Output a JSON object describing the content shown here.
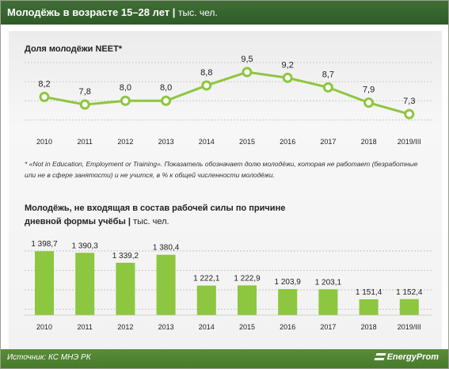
{
  "header": {
    "title": "Молодёжь в возрасте 15–28 лет",
    "unit": "тыс. чел."
  },
  "colors": {
    "header_bg": "#3f6f36",
    "accent": "#8dc63f",
    "marker_fill": "#ffffff",
    "text": "#222222"
  },
  "chart_data": [
    {
      "type": "line",
      "title": "Доля молодёжи NEET*",
      "categories": [
        "2010",
        "2011",
        "2012",
        "2013",
        "2014",
        "2015",
        "2016",
        "2017",
        "2018",
        "2019/III"
      ],
      "values": [
        8.2,
        7.8,
        8.0,
        8.0,
        8.8,
        9.5,
        9.2,
        8.7,
        7.9,
        7.3
      ],
      "value_labels": [
        "8,2",
        "7,8",
        "8,0",
        "8,0",
        "8,8",
        "9,5",
        "9,2",
        "8,7",
        "7,9",
        "7,3"
      ],
      "grid": "horizontal dashed"
    },
    {
      "type": "bar",
      "title_line1": "Молодёжь, не входящая  в состав  рабочей силы  по причине",
      "title_line2": "дневной формы  учёбы",
      "unit": "тыс. чел.",
      "categories": [
        "2010",
        "2011",
        "2012",
        "2013",
        "2014",
        "2015",
        "2016",
        "2017",
        "2018",
        "2019/III"
      ],
      "values": [
        1398.7,
        1390.3,
        1339.2,
        1380.4,
        1222.1,
        1222.9,
        1203.9,
        1203.1,
        1151.4,
        1152.4
      ],
      "value_labels": [
        "1 398,7",
        "1 390,3",
        "1 339,2",
        "1 380,4",
        "1 222,1",
        "1 222,9",
        "1 203,9",
        "1 203,1",
        "1 151,4",
        "1 152,4"
      ],
      "grid": "horizontal dashed"
    }
  ],
  "footnote": "* «Not in Education, Employment or Training». Показатель обозначает долю молодёжи, которая не работает (безработные или не в сфере занятости) и не учится, в % к общей численности молодёжи.",
  "footer": {
    "source": "Источник: КС МНЭ РК",
    "brand": "EnergyProm"
  }
}
